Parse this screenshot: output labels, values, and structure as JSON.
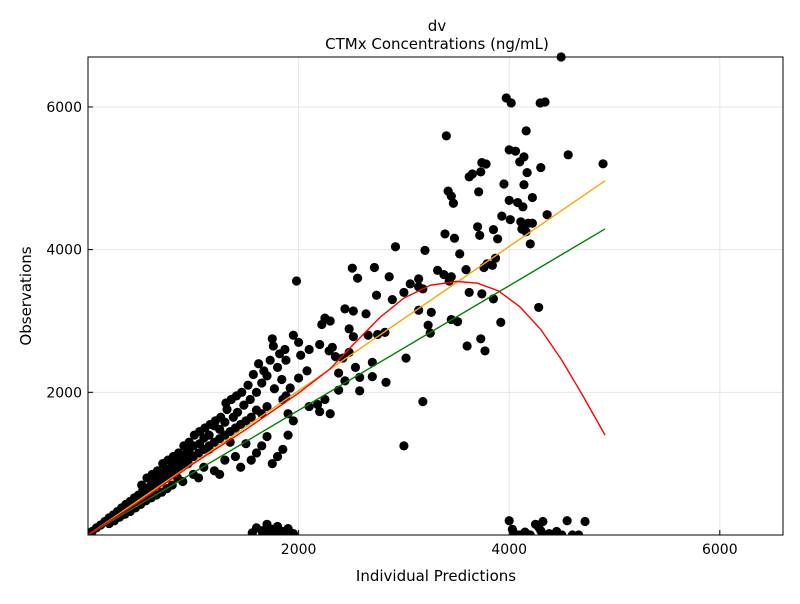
{
  "chart_data": {
    "type": "scatter",
    "title": "dv",
    "subtitle": "CTMx Concentrations (ng/mL)",
    "xlabel": "Individual Predictions",
    "ylabel": "Observations",
    "xlim": [
      0,
      6600
    ],
    "ylim": [
      0,
      6700
    ],
    "xticks": [
      2000,
      4000,
      6000
    ],
    "yticks": [
      2000,
      4000,
      6000
    ],
    "grid": true,
    "points": [
      [
        4493,
        6700
      ],
      [
        3972,
        6126
      ],
      [
        4019,
        6056
      ],
      [
        4294,
        6056
      ],
      [
        4340,
        6070
      ],
      [
        3403,
        5594
      ],
      [
        4161,
        5664
      ],
      [
        4000,
        5398
      ],
      [
        4060,
        5380
      ],
      [
        4140,
        5300
      ],
      [
        4560,
        5329
      ],
      [
        4891,
        5203
      ],
      [
        3740,
        5220
      ],
      [
        3780,
        5200
      ],
      [
        4100,
        5230
      ],
      [
        4300,
        5150
      ],
      [
        4170,
        5080
      ],
      [
        3620,
        5020
      ],
      [
        3650,
        5060
      ],
      [
        3730,
        5090
      ],
      [
        3420,
        4820
      ],
      [
        3450,
        4750
      ],
      [
        3470,
        4650
      ],
      [
        3710,
        4810
      ],
      [
        3950,
        4920
      ],
      [
        4140,
        4910
      ],
      [
        4220,
        4730
      ],
      [
        4000,
        4690
      ],
      [
        4080,
        4660
      ],
      [
        4130,
        4600
      ],
      [
        4360,
        4490
      ],
      [
        3930,
        4470
      ],
      [
        4010,
        4420
      ],
      [
        4110,
        4390
      ],
      [
        4180,
        4370
      ],
      [
        3480,
        4160
      ],
      [
        3390,
        4220
      ],
      [
        3700,
        4320
      ],
      [
        3720,
        4200
      ],
      [
        3850,
        4280
      ],
      [
        3890,
        4150
      ],
      [
        4120,
        4290
      ],
      [
        4220,
        4370
      ],
      [
        4160,
        4250
      ],
      [
        4200,
        4080
      ],
      [
        3530,
        3940
      ],
      [
        3200,
        3990
      ],
      [
        2920,
        4040
      ],
      [
        3320,
        3710
      ],
      [
        3380,
        3650
      ],
      [
        3450,
        3620
      ],
      [
        3430,
        3560
      ],
      [
        3590,
        3720
      ],
      [
        3760,
        3750
      ],
      [
        3790,
        3800
      ],
      [
        3870,
        3880
      ],
      [
        3840,
        3780
      ],
      [
        3140,
        3590
      ],
      [
        3060,
        3520
      ],
      [
        3140,
        3480
      ],
      [
        3180,
        3450
      ],
      [
        3000,
        3400
      ],
      [
        2720,
        3750
      ],
      [
        2860,
        3620
      ],
      [
        2510,
        3740
      ],
      [
        2560,
        3600
      ],
      [
        2890,
        3300
      ],
      [
        2740,
        3360
      ],
      [
        3140,
        3150
      ],
      [
        3260,
        3120
      ],
      [
        3620,
        3400
      ],
      [
        3740,
        3380
      ],
      [
        3850,
        3310
      ],
      [
        3450,
        3020
      ],
      [
        3510,
        2990
      ],
      [
        3230,
        2940
      ],
      [
        3250,
        2830
      ],
      [
        3920,
        2980
      ],
      [
        4280,
        3190
      ],
      [
        3730,
        2750
      ],
      [
        3770,
        2580
      ],
      [
        3600,
        2650
      ],
      [
        3020,
        2480
      ],
      [
        3180,
        1870
      ],
      [
        3000,
        1250
      ],
      [
        2750,
        2810
      ],
      [
        2820,
        2840
      ],
      [
        2660,
        2800
      ],
      [
        2480,
        2890
      ],
      [
        2520,
        2780
      ],
      [
        2480,
        2560
      ],
      [
        2700,
        2420
      ],
      [
        2420,
        2480
      ],
      [
        2380,
        2270
      ],
      [
        2540,
        2350
      ],
      [
        2580,
        2210
      ],
      [
        2440,
        2160
      ],
      [
        2580,
        2020
      ],
      [
        2700,
        2220
      ],
      [
        2830,
        2140
      ],
      [
        2380,
        2030
      ],
      [
        2250,
        1900
      ],
      [
        2180,
        1830
      ],
      [
        2200,
        1730
      ],
      [
        2300,
        1700
      ],
      [
        2100,
        1800
      ],
      [
        2350,
        2500
      ],
      [
        2290,
        2580
      ],
      [
        2320,
        2630
      ],
      [
        2200,
        2670
      ],
      [
        2100,
        2600
      ],
      [
        2000,
        2700
      ],
      [
        1950,
        2800
      ],
      [
        1980,
        3560
      ],
      [
        1750,
        2750
      ],
      [
        1760,
        2650
      ],
      [
        1820,
        2540
      ],
      [
        1870,
        2600
      ],
      [
        2020,
        2520
      ],
      [
        2220,
        2950
      ],
      [
        2300,
        3000
      ],
      [
        2250,
        3040
      ],
      [
        2440,
        3170
      ],
      [
        2520,
        3140
      ],
      [
        2640,
        3100
      ],
      [
        2080,
        2300
      ],
      [
        2000,
        2200
      ],
      [
        1920,
        2060
      ],
      [
        1880,
        1950
      ],
      [
        1840,
        2180
      ],
      [
        1700,
        2230
      ],
      [
        1650,
        2130
      ],
      [
        1770,
        2050
      ],
      [
        1600,
        2000
      ],
      [
        1540,
        1900
      ],
      [
        1480,
        1820
      ],
      [
        1420,
        1720
      ],
      [
        1380,
        1650
      ],
      [
        1320,
        1760
      ],
      [
        1300,
        1580
      ],
      [
        1250,
        1480
      ],
      [
        1200,
        1530
      ],
      [
        1150,
        1400
      ],
      [
        1100,
        1360
      ],
      [
        1060,
        1280
      ],
      [
        1000,
        1250
      ],
      [
        960,
        1180
      ],
      [
        920,
        1130
      ],
      [
        880,
        1060
      ],
      [
        840,
        1010
      ],
      [
        800,
        960
      ],
      [
        760,
        920
      ],
      [
        720,
        880
      ],
      [
        680,
        820
      ],
      [
        640,
        760
      ],
      [
        600,
        700
      ],
      [
        560,
        660
      ],
      [
        520,
        620
      ],
      [
        480,
        560
      ],
      [
        440,
        520
      ],
      [
        400,
        470
      ],
      [
        360,
        430
      ],
      [
        320,
        380
      ],
      [
        280,
        330
      ],
      [
        240,
        280
      ],
      [
        200,
        240
      ],
      [
        160,
        190
      ],
      [
        120,
        140
      ],
      [
        80,
        100
      ],
      [
        40,
        50
      ],
      [
        20,
        20
      ],
      [
        1950,
        1600
      ],
      [
        1900,
        1400
      ],
      [
        1850,
        1200
      ],
      [
        1800,
        1100
      ],
      [
        1750,
        1000
      ],
      [
        1700,
        1380
      ],
      [
        1650,
        1250
      ],
      [
        1600,
        1150
      ],
      [
        1550,
        1050
      ],
      [
        1500,
        1280
      ],
      [
        1450,
        950
      ],
      [
        1400,
        1100
      ],
      [
        1350,
        1300
      ],
      [
        1300,
        1050
      ],
      [
        1250,
        850
      ],
      [
        1200,
        900
      ],
      [
        1150,
        1200
      ],
      [
        1100,
        950
      ],
      [
        1050,
        800
      ],
      [
        1000,
        850
      ],
      [
        950,
        1000
      ],
      [
        900,
        750
      ],
      [
        850,
        800
      ],
      [
        800,
        700
      ],
      [
        750,
        650
      ],
      [
        700,
        600
      ],
      [
        650,
        560
      ],
      [
        600,
        520
      ],
      [
        550,
        480
      ],
      [
        500,
        430
      ],
      [
        450,
        380
      ],
      [
        400,
        330
      ],
      [
        350,
        290
      ],
      [
        300,
        250
      ],
      [
        250,
        200
      ],
      [
        200,
        160
      ],
      [
        1900,
        1700
      ],
      [
        1850,
        1900
      ],
      [
        1700,
        1800
      ],
      [
        1650,
        1700
      ],
      [
        1600,
        1750
      ],
      [
        1550,
        1650
      ],
      [
        1500,
        1600
      ],
      [
        1450,
        1550
      ],
      [
        1400,
        1500
      ],
      [
        1350,
        1450
      ],
      [
        1300,
        1400
      ],
      [
        1250,
        1350
      ],
      [
        1200,
        1300
      ],
      [
        1150,
        1250
      ],
      [
        1100,
        1200
      ],
      [
        1050,
        1150
      ],
      [
        1000,
        1100
      ],
      [
        950,
        1050
      ],
      [
        900,
        980
      ],
      [
        850,
        920
      ],
      [
        800,
        870
      ],
      [
        750,
        820
      ],
      [
        700,
        760
      ],
      [
        650,
        700
      ],
      [
        600,
        650
      ],
      [
        550,
        600
      ],
      [
        500,
        540
      ],
      [
        450,
        490
      ],
      [
        400,
        440
      ],
      [
        350,
        380
      ],
      [
        300,
        320
      ],
      [
        250,
        270
      ],
      [
        1880,
        2450
      ],
      [
        1800,
        2350
      ],
      [
        1730,
        2450
      ],
      [
        1670,
        2300
      ],
      [
        1620,
        2400
      ],
      [
        1570,
        2250
      ],
      [
        1520,
        2100
      ],
      [
        1460,
        2000
      ],
      [
        1410,
        1950
      ],
      [
        1360,
        1900
      ],
      [
        1310,
        1850
      ],
      [
        1260,
        1650
      ],
      [
        1210,
        1600
      ],
      [
        1160,
        1550
      ],
      [
        1110,
        1500
      ],
      [
        1060,
        1450
      ],
      [
        1010,
        1400
      ],
      [
        960,
        1300
      ],
      [
        910,
        1250
      ],
      [
        860,
        1150
      ],
      [
        810,
        1100
      ],
      [
        760,
        1050
      ],
      [
        710,
        1000
      ],
      [
        660,
        900
      ],
      [
        610,
        850
      ],
      [
        560,
        800
      ],
      [
        510,
        700
      ],
      [
        1600,
        100
      ],
      [
        1650,
        60
      ],
      [
        1700,
        30
      ],
      [
        1750,
        80
      ],
      [
        1800,
        120
      ],
      [
        1850,
        50
      ],
      [
        1900,
        90
      ],
      [
        1950,
        20
      ],
      [
        1700,
        150
      ],
      [
        1800,
        10
      ],
      [
        1560,
        30
      ],
      [
        1660,
        0
      ],
      [
        1760,
        0
      ],
      [
        1880,
        0
      ],
      [
        4000,
        200
      ],
      [
        4030,
        80
      ],
      [
        4050,
        20
      ],
      [
        4100,
        0
      ],
      [
        4200,
        0
      ],
      [
        4250,
        150
      ],
      [
        4280,
        110
      ],
      [
        4300,
        60
      ],
      [
        4320,
        190
      ],
      [
        4380,
        20
      ],
      [
        4450,
        50
      ],
      [
        4500,
        0
      ],
      [
        4550,
        200
      ],
      [
        4600,
        0
      ],
      [
        4660,
        0
      ],
      [
        4720,
        190
      ],
      [
        4350,
        0
      ],
      [
        4150,
        40
      ]
    ],
    "lines": [
      {
        "color": "#008000",
        "points": [
          [
            0,
            0
          ],
          [
            4910,
            4290
          ]
        ]
      },
      {
        "color": "#ffa500",
        "points": [
          [
            0,
            0
          ],
          [
            4910,
            4965
          ]
        ]
      },
      {
        "color": "#ff0000",
        "points": [
          [
            0,
            0
          ],
          [
            500,
            480
          ],
          [
            1000,
            1000
          ],
          [
            1500,
            1480
          ],
          [
            2000,
            1990
          ],
          [
            2300,
            2330
          ],
          [
            2500,
            2640
          ],
          [
            2780,
            3060
          ],
          [
            3000,
            3320
          ],
          [
            3250,
            3500
          ],
          [
            3500,
            3555
          ],
          [
            3700,
            3530
          ],
          [
            3900,
            3420
          ],
          [
            4100,
            3200
          ],
          [
            4300,
            2880
          ],
          [
            4500,
            2450
          ],
          [
            4700,
            1950
          ],
          [
            4910,
            1400
          ]
        ]
      }
    ],
    "point_color": "#000000"
  }
}
